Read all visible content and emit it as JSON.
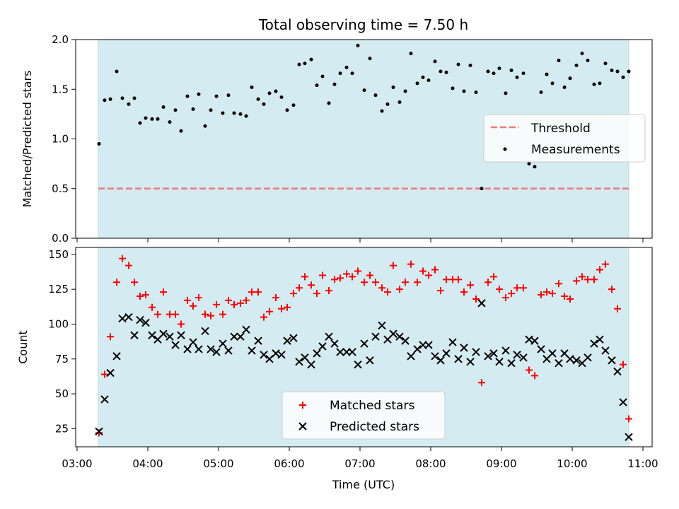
{
  "figure": {
    "title": "Total observing time = 7.50 h",
    "xlabel": "Time (UTC)",
    "xticks": [
      {
        "label": "03:00",
        "value": 3.0
      },
      {
        "label": "04:00",
        "value": 4.0
      },
      {
        "label": "05:00",
        "value": 5.0
      },
      {
        "label": "06:00",
        "value": 6.0
      },
      {
        "label": "07:00",
        "value": 7.0
      },
      {
        "label": "08:00",
        "value": 8.0
      },
      {
        "label": "09:00",
        "value": 9.0
      },
      {
        "label": "10:00",
        "value": 10.0
      },
      {
        "label": "11:00",
        "value": 11.0
      }
    ],
    "xlim": [
      2.98,
      11.13
    ],
    "shaded_interval": [
      3.3,
      10.8
    ],
    "shade_color": "#d4ebf1"
  },
  "chart_data": [
    {
      "type": "scatter",
      "ylabel": "Matched/Predicted stars",
      "ylim": [
        0,
        2.0
      ],
      "yticks": [
        {
          "label": "0.0",
          "value": 0.0
        },
        {
          "label": "0.5",
          "value": 0.5
        },
        {
          "label": "1.0",
          "value": 1.0
        },
        {
          "label": "1.5",
          "value": 1.5
        },
        {
          "label": "2.0",
          "value": 2.0
        }
      ],
      "legend_placement": "center-right",
      "threshold": {
        "name": "Threshold",
        "value": 0.5,
        "color": "#f07878"
      },
      "series": [
        {
          "name": "Measurements",
          "color": "#000000",
          "x": [
            3.31,
            3.39,
            3.47,
            3.56,
            3.64,
            3.73,
            3.81,
            3.89,
            3.97,
            4.06,
            4.14,
            4.22,
            4.31,
            4.39,
            4.47,
            4.56,
            4.64,
            4.72,
            4.81,
            4.89,
            4.97,
            5.06,
            5.14,
            5.22,
            5.31,
            5.39,
            5.47,
            5.56,
            5.64,
            5.72,
            5.81,
            5.89,
            5.97,
            6.06,
            6.14,
            6.22,
            6.31,
            6.39,
            6.47,
            6.56,
            6.64,
            6.72,
            6.81,
            6.89,
            6.97,
            7.06,
            7.14,
            7.22,
            7.31,
            7.39,
            7.47,
            7.56,
            7.64,
            7.72,
            7.81,
            7.89,
            7.97,
            8.06,
            8.14,
            8.22,
            8.31,
            8.39,
            8.47,
            8.56,
            8.64,
            8.72,
            8.81,
            8.89,
            8.97,
            9.06,
            9.14,
            9.22,
            9.31,
            9.39,
            9.47,
            9.56,
            9.64,
            9.72,
            9.81,
            9.89,
            9.97,
            10.06,
            10.14,
            10.22,
            10.31,
            10.39,
            10.47,
            10.56,
            10.64,
            10.72,
            10.8
          ],
          "y": [
            0.95,
            1.39,
            1.4,
            1.68,
            1.41,
            1.35,
            1.41,
            1.16,
            1.21,
            1.2,
            1.2,
            1.32,
            1.17,
            1.29,
            1.08,
            1.43,
            1.3,
            1.45,
            1.13,
            1.29,
            1.43,
            1.26,
            1.44,
            1.26,
            1.25,
            1.23,
            1.52,
            1.4,
            1.35,
            1.46,
            1.48,
            1.42,
            1.29,
            1.34,
            1.75,
            1.76,
            1.8,
            1.54,
            1.63,
            1.36,
            1.55,
            1.66,
            1.72,
            1.66,
            1.94,
            1.49,
            1.81,
            1.44,
            1.28,
            1.35,
            1.52,
            1.37,
            1.48,
            1.86,
            1.56,
            1.62,
            1.59,
            1.78,
            1.68,
            1.67,
            1.51,
            1.75,
            1.48,
            1.74,
            1.47,
            0.5,
            1.68,
            1.66,
            1.71,
            1.46,
            1.69,
            1.62,
            1.66,
            0.75,
            0.72,
            1.47,
            1.65,
            1.56,
            1.79,
            1.52,
            1.61,
            1.74,
            1.86,
            1.79,
            1.55,
            1.56,
            1.76,
            1.69,
            1.68,
            1.62,
            1.68
          ]
        }
      ]
    },
    {
      "type": "scatter",
      "ylabel": "Count",
      "ylim": [
        12,
        155
      ],
      "yticks": [
        {
          "label": "25",
          "value": 25
        },
        {
          "label": "50",
          "value": 50
        },
        {
          "label": "75",
          "value": 75
        },
        {
          "label": "100",
          "value": 100
        },
        {
          "label": "125",
          "value": 125
        },
        {
          "label": "150",
          "value": 150
        }
      ],
      "legend_placement": "lower-center",
      "series": [
        {
          "name": "Matched stars",
          "marker": "plus",
          "color": "#ff0000",
          "x": [
            3.31,
            3.39,
            3.47,
            3.56,
            3.64,
            3.73,
            3.81,
            3.89,
            3.97,
            4.06,
            4.14,
            4.22,
            4.31,
            4.39,
            4.47,
            4.56,
            4.64,
            4.72,
            4.81,
            4.89,
            4.97,
            5.06,
            5.14,
            5.22,
            5.31,
            5.39,
            5.47,
            5.56,
            5.64,
            5.72,
            5.81,
            5.89,
            5.97,
            6.06,
            6.14,
            6.22,
            6.31,
            6.39,
            6.47,
            6.56,
            6.64,
            6.72,
            6.81,
            6.89,
            6.97,
            7.06,
            7.14,
            7.22,
            7.31,
            7.39,
            7.47,
            7.56,
            7.64,
            7.72,
            7.81,
            7.89,
            7.97,
            8.06,
            8.14,
            8.22,
            8.31,
            8.39,
            8.47,
            8.56,
            8.64,
            8.72,
            8.81,
            8.89,
            8.97,
            9.06,
            9.14,
            9.22,
            9.31,
            9.39,
            9.47,
            9.56,
            9.64,
            9.72,
            9.81,
            9.89,
            9.97,
            10.06,
            10.14,
            10.22,
            10.31,
            10.39,
            10.47,
            10.56,
            10.64,
            10.72,
            10.8
          ],
          "y": [
            22,
            64,
            91,
            130,
            147,
            142,
            130,
            120,
            121,
            112,
            107,
            123,
            107,
            107,
            100,
            117,
            113,
            119,
            107,
            106,
            114,
            107,
            117,
            114,
            115,
            117,
            123,
            123,
            105,
            109,
            119,
            111,
            112,
            122,
            126,
            134,
            128,
            122,
            135,
            124,
            132,
            133,
            136,
            134,
            138,
            130,
            135,
            130,
            126,
            123,
            142,
            125,
            130,
            143,
            130,
            138,
            135,
            139,
            124,
            132,
            132,
            132,
            123,
            128,
            118,
            58,
            130,
            134,
            125,
            119,
            122,
            126,
            126,
            67,
            63,
            121,
            123,
            122,
            129,
            120,
            118,
            131,
            134,
            132,
            132,
            139,
            143,
            125,
            111,
            71,
            32
          ]
        },
        {
          "name": "Predicted stars",
          "marker": "x",
          "color": "#000000",
          "x": [
            3.31,
            3.39,
            3.47,
            3.56,
            3.64,
            3.73,
            3.81,
            3.89,
            3.97,
            4.06,
            4.14,
            4.22,
            4.31,
            4.39,
            4.47,
            4.56,
            4.64,
            4.72,
            4.81,
            4.89,
            4.97,
            5.06,
            5.14,
            5.22,
            5.31,
            5.39,
            5.47,
            5.56,
            5.64,
            5.72,
            5.81,
            5.89,
            5.97,
            6.06,
            6.14,
            6.22,
            6.31,
            6.39,
            6.47,
            6.56,
            6.64,
            6.72,
            6.81,
            6.89,
            6.97,
            7.06,
            7.14,
            7.22,
            7.31,
            7.39,
            7.47,
            7.56,
            7.64,
            7.72,
            7.81,
            7.89,
            7.97,
            8.06,
            8.14,
            8.22,
            8.31,
            8.39,
            8.47,
            8.56,
            8.64,
            8.72,
            8.81,
            8.89,
            8.97,
            9.06,
            9.14,
            9.22,
            9.31,
            9.39,
            9.47,
            9.56,
            9.64,
            9.72,
            9.81,
            9.89,
            9.97,
            10.06,
            10.14,
            10.22,
            10.31,
            10.39,
            10.47,
            10.56,
            10.64,
            10.72,
            10.8
          ],
          "y": [
            23,
            46,
            65,
            77,
            104,
            105,
            92,
            103,
            101,
            92,
            89,
            93,
            91,
            85,
            92,
            82,
            87,
            82,
            95,
            82,
            80,
            86,
            81,
            91,
            91,
            96,
            81,
            88,
            78,
            75,
            79,
            78,
            88,
            90,
            73,
            76,
            71,
            79,
            84,
            91,
            86,
            80,
            80,
            80,
            71,
            86,
            74,
            91,
            99,
            89,
            93,
            91,
            88,
            77,
            82,
            85,
            85,
            77,
            74,
            79,
            87,
            75,
            83,
            73,
            80,
            115,
            77,
            79,
            73,
            81,
            72,
            78,
            76,
            89,
            88,
            82,
            75,
            79,
            72,
            79,
            75,
            74,
            72,
            76,
            86,
            89,
            81,
            74,
            66,
            44,
            19
          ]
        }
      ]
    }
  ]
}
